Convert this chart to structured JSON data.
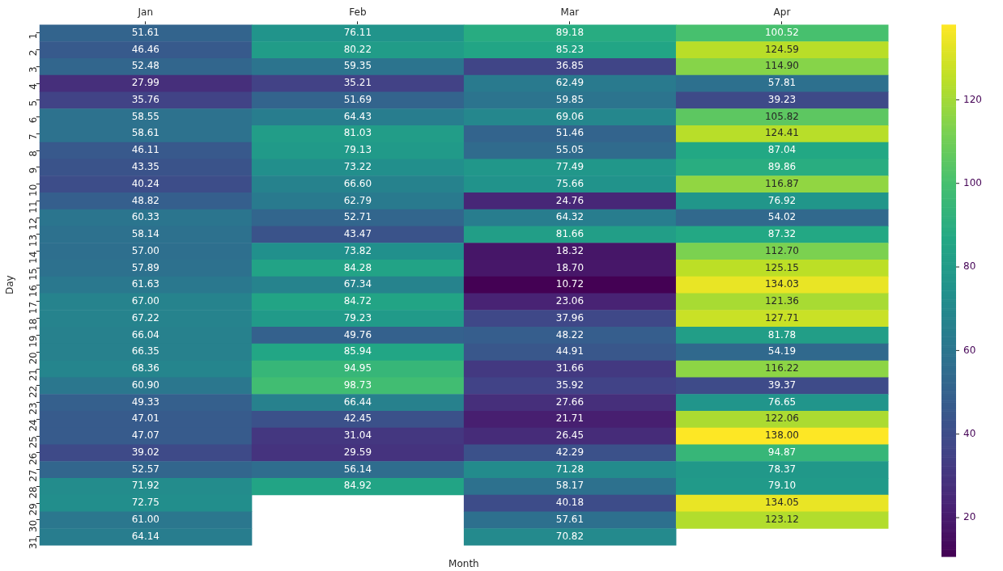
{
  "chart_data": {
    "type": "heatmap",
    "xlabel": "Month",
    "ylabel": "Day",
    "categories": [
      "Jan",
      "Feb",
      "Mar",
      "Apr"
    ],
    "y_categories": [
      "1",
      "2",
      "3",
      "4",
      "5",
      "6",
      "7",
      "8",
      "9",
      "10",
      "11",
      "12",
      "13",
      "14",
      "15",
      "16",
      "17",
      "18",
      "19",
      "20",
      "21",
      "22",
      "23",
      "24",
      "25",
      "26",
      "27",
      "28",
      "29",
      "30",
      "31"
    ],
    "cells": [
      [
        51.61,
        76.11,
        89.18,
        100.52
      ],
      [
        46.46,
        80.22,
        85.23,
        124.59
      ],
      [
        52.48,
        59.35,
        36.85,
        114.9
      ],
      [
        27.99,
        35.21,
        62.49,
        57.81
      ],
      [
        35.76,
        51.69,
        59.85,
        39.23
      ],
      [
        58.55,
        64.43,
        69.06,
        105.82
      ],
      [
        58.61,
        81.03,
        51.46,
        124.41
      ],
      [
        46.11,
        79.13,
        55.05,
        87.04
      ],
      [
        43.35,
        73.22,
        77.49,
        89.86
      ],
      [
        40.24,
        66.6,
        75.66,
        116.87
      ],
      [
        48.82,
        62.79,
        24.76,
        76.92
      ],
      [
        60.33,
        52.71,
        64.32,
        54.02
      ],
      [
        58.14,
        43.47,
        81.66,
        87.32
      ],
      [
        57.0,
        73.82,
        18.32,
        112.7
      ],
      [
        57.89,
        84.28,
        18.7,
        125.15
      ],
      [
        61.63,
        67.34,
        10.72,
        134.03
      ],
      [
        67.0,
        84.72,
        23.06,
        121.36
      ],
      [
        67.22,
        79.23,
        37.96,
        127.71
      ],
      [
        66.04,
        49.76,
        48.22,
        81.78
      ],
      [
        66.35,
        85.94,
        44.91,
        54.19
      ],
      [
        68.36,
        94.95,
        31.66,
        116.22
      ],
      [
        60.9,
        98.73,
        35.92,
        39.37
      ],
      [
        49.33,
        66.44,
        27.66,
        76.65
      ],
      [
        47.01,
        42.45,
        21.71,
        122.06
      ],
      [
        47.07,
        31.04,
        26.45,
        138.0
      ],
      [
        39.02,
        29.59,
        42.29,
        94.87
      ],
      [
        52.57,
        56.14,
        71.28,
        78.37
      ],
      [
        71.92,
        84.92,
        58.17,
        79.1
      ],
      [
        72.75,
        null,
        40.18,
        134.05
      ],
      [
        61.0,
        null,
        57.61,
        123.12
      ],
      [
        64.14,
        null,
        70.82,
        null
      ]
    ],
    "clim": [
      10.72,
      138.0
    ],
    "cticks": [
      20,
      40,
      60,
      80,
      100,
      120
    ],
    "cell_labels": [
      [
        "51.61",
        "76.11",
        "89.18",
        "100.52"
      ],
      [
        "46.46",
        "80.22",
        "85.23",
        "124.59"
      ],
      [
        "52.48",
        "59.35",
        "36.85",
        "114.90"
      ],
      [
        "27.99",
        "35.21",
        "62.49",
        "57.81"
      ],
      [
        "35.76",
        "51.69",
        "59.85",
        "39.23"
      ],
      [
        "58.55",
        "64.43",
        "69.06",
        "105.82"
      ],
      [
        "58.61",
        "81.03",
        "51.46",
        "124.41"
      ],
      [
        "46.11",
        "79.13",
        "55.05",
        "87.04"
      ],
      [
        "43.35",
        "73.22",
        "77.49",
        "89.86"
      ],
      [
        "40.24",
        "66.60",
        "75.66",
        "116.87"
      ],
      [
        "48.82",
        "62.79",
        "24.76",
        "76.92"
      ],
      [
        "60.33",
        "52.71",
        "64.32",
        "54.02"
      ],
      [
        "58.14",
        "43.47",
        "81.66",
        "87.32"
      ],
      [
        "57.00",
        "73.82",
        "18.32",
        "112.70"
      ],
      [
        "57.89",
        "84.28",
        "18.70",
        "125.15"
      ],
      [
        "61.63",
        "67.34",
        "10.72",
        "134.03"
      ],
      [
        "67.00",
        "84.72",
        "23.06",
        "121.36"
      ],
      [
        "67.22",
        "79.23",
        "37.96",
        "127.71"
      ],
      [
        "66.04",
        "49.76",
        "48.22",
        "81.78"
      ],
      [
        "66.35",
        "85.94",
        "44.91",
        "54.19"
      ],
      [
        "68.36",
        "94.95",
        "31.66",
        "116.22"
      ],
      [
        "60.90",
        "98.73",
        "35.92",
        "39.37"
      ],
      [
        "49.33",
        "66.44",
        "27.66",
        "76.65"
      ],
      [
        "47.01",
        "42.45",
        "21.71",
        "122.06"
      ],
      [
        "47.07",
        "31.04",
        "26.45",
        "138.00"
      ],
      [
        "39.02",
        "29.59",
        "42.29",
        "94.87"
      ],
      [
        "52.57",
        "56.14",
        "71.28",
        "78.37"
      ],
      [
        "71.92",
        "84.92",
        "58.17",
        "79.10"
      ],
      [
        "72.75",
        null,
        "40.18",
        "134.05"
      ],
      [
        "61.00",
        null,
        "57.61",
        "123.12"
      ],
      [
        "64.14",
        null,
        "70.82",
        null
      ]
    ]
  }
}
